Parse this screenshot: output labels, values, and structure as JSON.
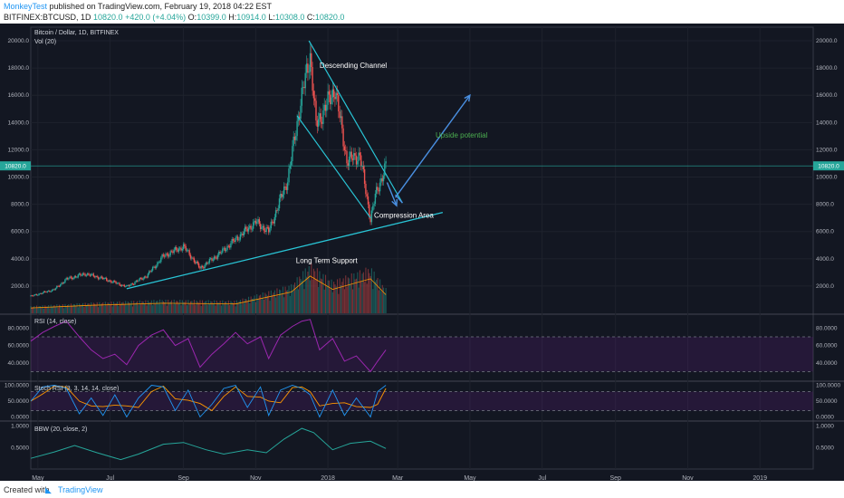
{
  "header": {
    "author": "MonkeyTest",
    "published": "published on TradingView.com, February 19, 2018 04:22 EST",
    "symbol": "BITFINEX:BTCUSD, 1D",
    "ohlc_prefix": "10820.0",
    "change": "+420.0 (+4.04%)",
    "open_label": "O:",
    "open_value": "10399.0",
    "high_label": "H:",
    "high_value": "10914.0",
    "low_label": "L:",
    "low_value": "10308.0",
    "close_label": "C:",
    "close_value": "10820.0"
  },
  "footer": {
    "created_with": "Created with",
    "brand": "TradingView"
  },
  "colors": {
    "background": "#131722",
    "up": "#26a69a",
    "down": "#ef5350",
    "trendline": "#29c5d6",
    "arrow": "#4a90e2",
    "rsi": "#9c27b0",
    "label": "#2196f3"
  },
  "chart_data": {
    "type": "candlestick",
    "title": "Bitcoin / Dollar, 1D, BITFINEX",
    "volume_label": "Vol (20)",
    "ylim": [
      0,
      21000
    ],
    "y_ticks": [
      2000,
      4000,
      6000,
      8000,
      10000,
      12000,
      14000,
      16000,
      18000,
      20000
    ],
    "y_tick_labels": [
      "2000.0",
      "4000.0",
      "6000.0",
      "8000.0",
      "10000.0",
      "12000.0",
      "14000.0",
      "16000.0",
      "18000.0",
      "20000.0"
    ],
    "last_price_label": "10820.0",
    "x_tick_labels": [
      "May",
      "Jul",
      "Sep",
      "Nov",
      "2018",
      "Mar",
      "May",
      "Jul",
      "Sep",
      "Nov",
      "2019"
    ],
    "x_tick_dates": [
      "2017-05-01",
      "2017-07-01",
      "2017-09-01",
      "2017-11-01",
      "2018-01-01",
      "2018-03-01",
      "2018-05-01",
      "2018-07-01",
      "2018-09-01",
      "2018-11-01",
      "2019-01-01"
    ],
    "x_range": [
      "2017-04-25",
      "2019-02-15"
    ],
    "price_path": [
      [
        "2017-04-25",
        1250
      ],
      [
        "2017-05-15",
        1750
      ],
      [
        "2017-05-25",
        2500
      ],
      [
        "2017-06-10",
        2900
      ],
      [
        "2017-06-25",
        2550
      ],
      [
        "2017-07-15",
        1950
      ],
      [
        "2017-08-01",
        2750
      ],
      [
        "2017-08-15",
        4200
      ],
      [
        "2017-09-01",
        4900
      ],
      [
        "2017-09-15",
        3300
      ],
      [
        "2017-10-01",
        4350
      ],
      [
        "2017-10-20",
        5800
      ],
      [
        "2017-11-01",
        6700
      ],
      [
        "2017-11-12",
        6000
      ],
      [
        "2017-11-28",
        9800
      ],
      [
        "2017-12-08",
        15000
      ],
      [
        "2017-12-17",
        19000
      ],
      [
        "2017-12-22",
        13800
      ],
      [
        "2018-01-07",
        16500
      ],
      [
        "2018-01-17",
        11200
      ],
      [
        "2018-01-28",
        11600
      ],
      [
        "2018-02-06",
        6900
      ],
      [
        "2018-02-10",
        8600
      ],
      [
        "2018-02-19",
        10820
      ]
    ],
    "volume_path": [
      [
        "2017-04-25",
        200
      ],
      [
        "2017-06-15",
        300
      ],
      [
        "2017-08-15",
        380
      ],
      [
        "2017-10-15",
        350
      ],
      [
        "2017-12-01",
        800
      ],
      [
        "2017-12-17",
        1400
      ],
      [
        "2018-01-05",
        900
      ],
      [
        "2018-02-06",
        1300
      ],
      [
        "2018-02-19",
        700
      ]
    ],
    "annotations": {
      "descending_channel": "Descending Channel",
      "upside_potential": "Upside potential",
      "compression_area": "Compression Area",
      "long_term_support": "Long Term Support"
    },
    "trendlines": {
      "support": [
        [
          "2017-07-15",
          1800
        ],
        [
          "2018-04-08",
          7400
        ]
      ],
      "channel_upper": [
        [
          "2017-12-16",
          20000
        ],
        [
          "2018-03-05",
          8100
        ]
      ],
      "channel_lower": [
        [
          "2017-12-06",
          14500
        ],
        [
          "2018-02-06",
          7000
        ]
      ],
      "arrow_down": [
        [
          "2018-02-20",
          9600
        ],
        [
          "2018-02-28",
          7900
        ]
      ],
      "arrow_up": [
        [
          "2018-02-27",
          8500
        ],
        [
          "2018-05-01",
          16000
        ]
      ],
      "arrow_back": [
        [
          "2018-03-05",
          8100
        ],
        [
          "2018-02-27",
          8700
        ]
      ]
    },
    "rsi": {
      "label": "RSI (14, close)",
      "ylim": [
        20,
        95
      ],
      "ticks": [
        40,
        60,
        80
      ],
      "tick_labels": [
        "40.0000",
        "60.0000",
        "80.0000"
      ],
      "bands": [
        30,
        70
      ],
      "path": [
        [
          "2017-04-25",
          65
        ],
        [
          "2017-05-05",
          75
        ],
        [
          "2017-05-15",
          82
        ],
        [
          "2017-05-25",
          88
        ],
        [
          "2017-06-05",
          70
        ],
        [
          "2017-06-15",
          55
        ],
        [
          "2017-06-25",
          45
        ],
        [
          "2017-07-05",
          50
        ],
        [
          "2017-07-15",
          38
        ],
        [
          "2017-07-25",
          60
        ],
        [
          "2017-08-05",
          72
        ],
        [
          "2017-08-15",
          78
        ],
        [
          "2017-08-25",
          60
        ],
        [
          "2017-09-05",
          68
        ],
        [
          "2017-09-15",
          35
        ],
        [
          "2017-09-25",
          50
        ],
        [
          "2017-10-05",
          62
        ],
        [
          "2017-10-15",
          75
        ],
        [
          "2017-10-25",
          62
        ],
        [
          "2017-11-05",
          70
        ],
        [
          "2017-11-12",
          45
        ],
        [
          "2017-11-22",
          72
        ],
        [
          "2017-12-02",
          82
        ],
        [
          "2017-12-10",
          88
        ],
        [
          "2017-12-17",
          90
        ],
        [
          "2017-12-25",
          55
        ],
        [
          "2018-01-05",
          68
        ],
        [
          "2018-01-15",
          42
        ],
        [
          "2018-01-25",
          48
        ],
        [
          "2018-02-06",
          30
        ],
        [
          "2018-02-12",
          42
        ],
        [
          "2018-02-19",
          55
        ]
      ]
    },
    "stoch_rsi": {
      "label": "Stoch RSI (3, 3, 14, 14, close)",
      "ylim": [
        -10,
        110
      ],
      "ticks": [
        0,
        50,
        100
      ],
      "tick_labels": [
        "0.0000",
        "50.0000",
        "100.0000"
      ],
      "bands": [
        20,
        80
      ],
      "k_path": [
        [
          "2017-04-25",
          50
        ],
        [
          "2017-05-05",
          95
        ],
        [
          "2017-05-15",
          100
        ],
        [
          "2017-05-25",
          90
        ],
        [
          "2017-06-05",
          10
        ],
        [
          "2017-06-15",
          60
        ],
        [
          "2017-06-25",
          5
        ],
        [
          "2017-07-05",
          70
        ],
        [
          "2017-07-15",
          0
        ],
        [
          "2017-07-25",
          60
        ],
        [
          "2017-08-05",
          100
        ],
        [
          "2017-08-15",
          95
        ],
        [
          "2017-08-25",
          20
        ],
        [
          "2017-09-05",
          85
        ],
        [
          "2017-09-15",
          0
        ],
        [
          "2017-09-25",
          40
        ],
        [
          "2017-10-05",
          90
        ],
        [
          "2017-10-15",
          100
        ],
        [
          "2017-10-25",
          30
        ],
        [
          "2017-11-05",
          95
        ],
        [
          "2017-11-12",
          5
        ],
        [
          "2017-11-22",
          85
        ],
        [
          "2017-12-02",
          100
        ],
        [
          "2017-12-10",
          90
        ],
        [
          "2017-12-17",
          70
        ],
        [
          "2017-12-25",
          0
        ],
        [
          "2018-01-05",
          85
        ],
        [
          "2018-01-15",
          5
        ],
        [
          "2018-01-25",
          60
        ],
        [
          "2018-02-06",
          0
        ],
        [
          "2018-02-12",
          80
        ],
        [
          "2018-02-19",
          100
        ]
      ]
    },
    "bbw": {
      "label": "BBW (20, close, 2)",
      "ylim": [
        0,
        1.1
      ],
      "ticks": [
        0.5,
        1.0
      ],
      "tick_labels": [
        "0.5000",
        "1.0000"
      ],
      "path": [
        [
          "2017-04-25",
          0.25
        ],
        [
          "2017-05-15",
          0.4
        ],
        [
          "2017-06-01",
          0.55
        ],
        [
          "2017-06-20",
          0.38
        ],
        [
          "2017-07-10",
          0.22
        ],
        [
          "2017-07-25",
          0.35
        ],
        [
          "2017-08-15",
          0.58
        ],
        [
          "2017-09-01",
          0.62
        ],
        [
          "2017-09-20",
          0.45
        ],
        [
          "2017-10-05",
          0.35
        ],
        [
          "2017-10-25",
          0.45
        ],
        [
          "2017-11-10",
          0.38
        ],
        [
          "2017-11-25",
          0.7
        ],
        [
          "2017-12-10",
          0.95
        ],
        [
          "2017-12-20",
          0.85
        ],
        [
          "2018-01-05",
          0.45
        ],
        [
          "2018-01-20",
          0.6
        ],
        [
          "2018-02-06",
          0.65
        ],
        [
          "2018-02-19",
          0.48
        ]
      ]
    }
  }
}
